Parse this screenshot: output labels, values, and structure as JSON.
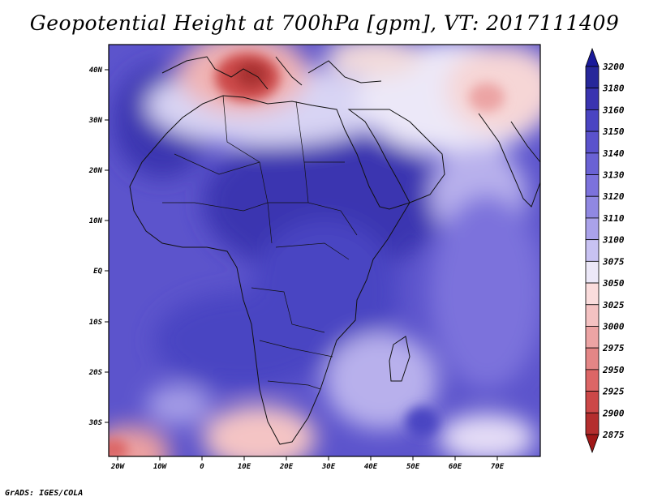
{
  "title": "Geopotential Height at 700hPa [gpm], VT: 2017111409",
  "credit": "GrADS: IGES/COLA",
  "map": {
    "lat_ticks": [
      "40N",
      "30N",
      "20N",
      "10N",
      "EQ",
      "10S",
      "20S",
      "30S"
    ],
    "lon_ticks": [
      "20W",
      "10W",
      "0",
      "10E",
      "20E",
      "30E",
      "40E",
      "50E",
      "60E",
      "70E"
    ]
  },
  "colorbar": {
    "levels": [
      "3200",
      "3180",
      "3160",
      "3150",
      "3140",
      "3130",
      "3120",
      "3110",
      "3100",
      "3075",
      "3050",
      "3025",
      "3000",
      "2975",
      "2950",
      "2925",
      "2900",
      "2875"
    ],
    "colors": {
      "top_cap": "#1a1a9a",
      "bottom_cap": "#a01818",
      "bands": [
        "#27279a",
        "#3a34b0",
        "#4a44c2",
        "#5a52cc",
        "#6a62d4",
        "#7c72dc",
        "#9088e2",
        "#aaa2ea",
        "#c8c2f2",
        "#ece8f8",
        "#fadcdc",
        "#f4c2c2",
        "#eca4a4",
        "#e48686",
        "#dc6666",
        "#cc4848",
        "#b42e2e"
      ]
    }
  }
}
